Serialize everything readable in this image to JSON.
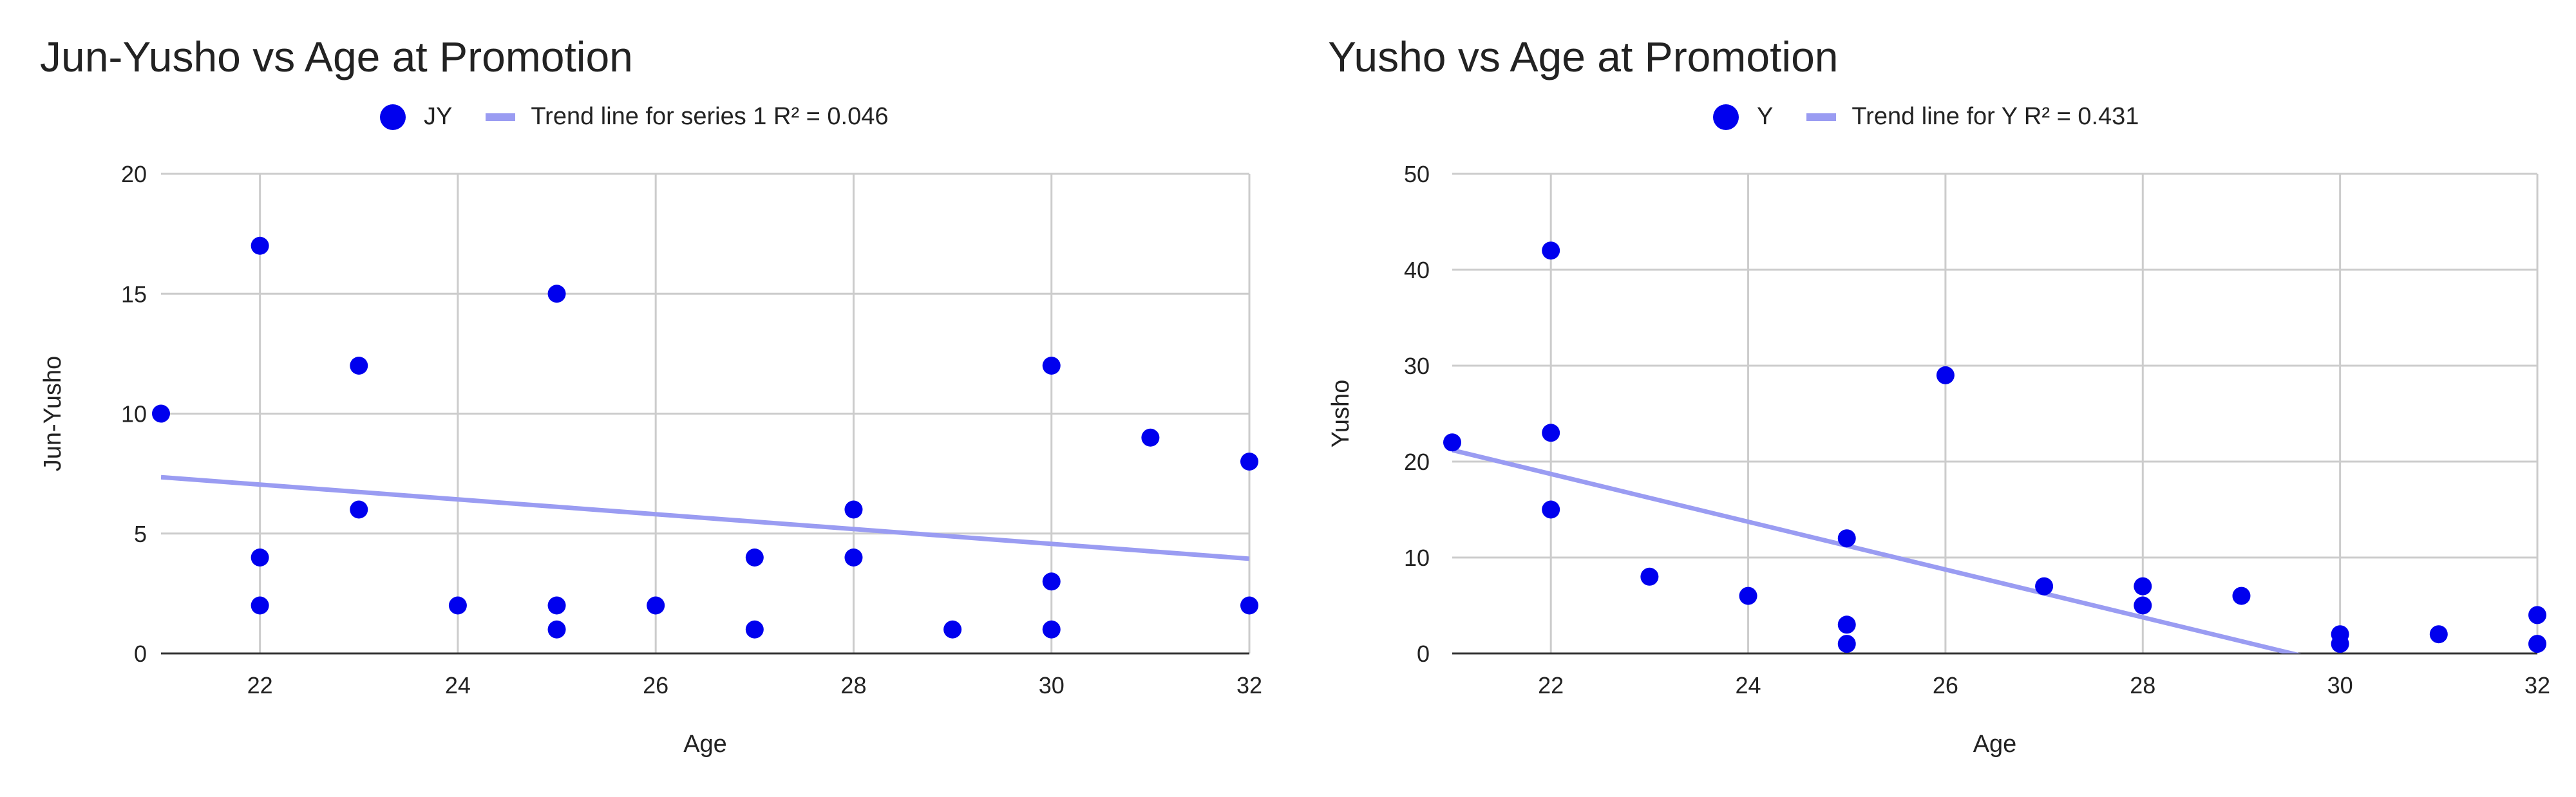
{
  "charts": [
    {
      "title": "Jun-Yusho vs Age at Promotion",
      "legend_point": "JY",
      "legend_trend": "Trend line for series 1 R² = 0.046"
    },
    {
      "title": "Yusho vs Age at Promotion",
      "legend_point": "Y",
      "legend_trend": "Trend line for Y R² = 0.431"
    }
  ],
  "colors": {
    "point": "#0000ee",
    "trend": "#9a9cf2",
    "grid": "#cccccc",
    "axis": "#333333"
  },
  "chart_data": [
    {
      "type": "scatter",
      "title": "Jun-Yusho vs Age at Promotion",
      "xlabel": "Age",
      "ylabel": "Jun-Yusho",
      "xlim": [
        21,
        32
      ],
      "ylim": [
        0,
        20
      ],
      "xticks": [
        22,
        24,
        26,
        28,
        30,
        32
      ],
      "yticks": [
        0,
        5,
        10,
        15,
        20
      ],
      "grid": true,
      "legend_position": "top",
      "series": [
        {
          "name": "JY",
          "points": [
            [
              21,
              10
            ],
            [
              22,
              17
            ],
            [
              22,
              4
            ],
            [
              22,
              2
            ],
            [
              23,
              12
            ],
            [
              23,
              6
            ],
            [
              24,
              2
            ],
            [
              25,
              15
            ],
            [
              25,
              2
            ],
            [
              25,
              1
            ],
            [
              26,
              2
            ],
            [
              27,
              4
            ],
            [
              27,
              1
            ],
            [
              28,
              6
            ],
            [
              28,
              4
            ],
            [
              29,
              1
            ],
            [
              30,
              12
            ],
            [
              30,
              3
            ],
            [
              30,
              1
            ],
            [
              31,
              9
            ],
            [
              32,
              8
            ],
            [
              32,
              2
            ]
          ]
        }
      ],
      "trendline": {
        "label": "Trend line for series 1",
        "r2": 0.046,
        "y_at_xmin": 7.35,
        "y_at_xmax": 3.95
      }
    },
    {
      "type": "scatter",
      "title": "Yusho vs Age at Promotion",
      "xlabel": "Age",
      "ylabel": "Yusho",
      "xlim": [
        21,
        32
      ],
      "ylim": [
        0,
        50
      ],
      "xticks": [
        22,
        24,
        26,
        28,
        30,
        32
      ],
      "yticks": [
        0,
        10,
        20,
        30,
        40,
        50
      ],
      "grid": true,
      "legend_position": "top",
      "series": [
        {
          "name": "Y",
          "points": [
            [
              21,
              22
            ],
            [
              22,
              42
            ],
            [
              22,
              23
            ],
            [
              22,
              15
            ],
            [
              23,
              8
            ],
            [
              24,
              6
            ],
            [
              25,
              12
            ],
            [
              25,
              3
            ],
            [
              25,
              1
            ],
            [
              26,
              29
            ],
            [
              27,
              7
            ],
            [
              28,
              7
            ],
            [
              28,
              5
            ],
            [
              29,
              6
            ],
            [
              30,
              2
            ],
            [
              30,
              1
            ],
            [
              31,
              2
            ],
            [
              32,
              4
            ],
            [
              32,
              1
            ]
          ]
        }
      ],
      "trendline": {
        "label": "Trend line for Y",
        "r2": 0.431,
        "y_at_xmin": 21.2,
        "y_at_xmax": -6.2
      }
    }
  ]
}
